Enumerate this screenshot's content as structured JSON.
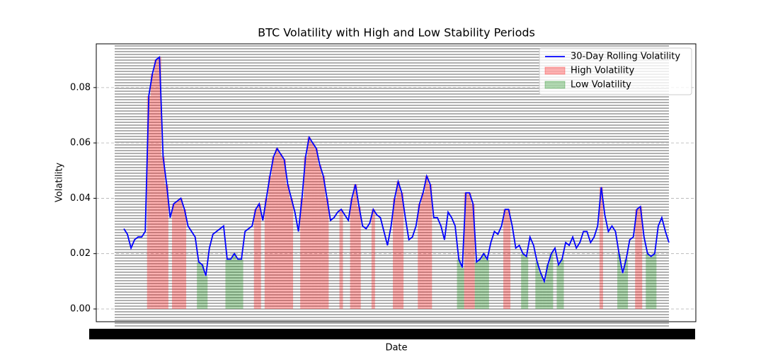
{
  "chart_data": {
    "type": "line",
    "title": "BTC Volatility with High and Low Stability Periods",
    "x_label": "Date",
    "y_label": "Volatility",
    "ylim": [
      -0.0046,
      0.0958
    ],
    "yticks": [
      {
        "value": 0,
        "label": "0.00"
      },
      {
        "value": 0.02,
        "label": "0.02"
      },
      {
        "value": 0.04,
        "label": "0.04"
      },
      {
        "value": 0.06,
        "label": "0.06"
      },
      {
        "value": 0.08,
        "label": "0.08"
      }
    ],
    "grid": true,
    "legend": "upper right",
    "series": [
      {
        "name": "30-Day Rolling Volatility",
        "color": "#0000ff",
        "values": [
          0.029,
          0.027,
          0.022,
          0.025,
          0.026,
          0.026,
          0.028,
          0.077,
          0.085,
          0.09,
          0.091,
          0.055,
          0.045,
          0.033,
          0.038,
          0.039,
          0.04,
          0.036,
          0.03,
          0.028,
          0.026,
          0.017,
          0.016,
          0.012,
          0.022,
          0.027,
          0.028,
          0.029,
          0.03,
          0.018,
          0.018,
          0.02,
          0.018,
          0.018,
          0.028,
          0.029,
          0.03,
          0.036,
          0.038,
          0.032,
          0.04,
          0.048,
          0.055,
          0.058,
          0.056,
          0.054,
          0.045,
          0.04,
          0.035,
          0.028,
          0.04,
          0.055,
          0.062,
          0.06,
          0.058,
          0.052,
          0.048,
          0.04,
          0.032,
          0.033,
          0.035,
          0.036,
          0.034,
          0.032,
          0.04,
          0.045,
          0.037,
          0.03,
          0.029,
          0.031,
          0.036,
          0.034,
          0.033,
          0.028,
          0.023,
          0.03,
          0.04,
          0.046,
          0.042,
          0.033,
          0.025,
          0.026,
          0.03,
          0.038,
          0.042,
          0.048,
          0.045,
          0.033,
          0.033,
          0.03,
          0.025,
          0.035,
          0.033,
          0.03,
          0.018,
          0.015,
          0.042,
          0.042,
          0.038,
          0.017,
          0.018,
          0.02,
          0.018,
          0.024,
          0.028,
          0.027,
          0.03,
          0.036,
          0.036,
          0.03,
          0.022,
          0.023,
          0.02,
          0.019,
          0.026,
          0.023,
          0.017,
          0.013,
          0.01,
          0.016,
          0.02,
          0.022,
          0.016,
          0.018,
          0.024,
          0.023,
          0.026,
          0.022,
          0.024,
          0.028,
          0.028,
          0.024,
          0.026,
          0.03,
          0.044,
          0.034,
          0.028,
          0.03,
          0.028,
          0.02,
          0.013,
          0.018,
          0.025,
          0.026,
          0.036,
          0.037,
          0.026,
          0.02,
          0.019,
          0.02,
          0.03,
          0.033,
          0.028,
          0.024
        ]
      },
      {
        "name": "High Volatility",
        "color": "#ff0000",
        "values": [
          null,
          null,
          null,
          null,
          null,
          null,
          null,
          0.077,
          0.085,
          0.09,
          0.091,
          0.055,
          0.045,
          null,
          0.038,
          0.039,
          0.04,
          0.036,
          null,
          null,
          null,
          null,
          null,
          null,
          null,
          null,
          null,
          null,
          null,
          null,
          null,
          null,
          null,
          null,
          null,
          null,
          null,
          0.036,
          0.038,
          null,
          0.04,
          0.048,
          0.055,
          0.058,
          0.056,
          0.054,
          0.045,
          0.04,
          null,
          null,
          0.04,
          0.055,
          0.062,
          0.06,
          0.058,
          0.052,
          0.048,
          0.04,
          null,
          null,
          null,
          0.036,
          null,
          null,
          0.04,
          0.045,
          0.037,
          null,
          null,
          null,
          0.036,
          null,
          null,
          null,
          null,
          null,
          0.04,
          0.046,
          0.042,
          null,
          null,
          null,
          null,
          0.038,
          0.042,
          0.048,
          0.045,
          null,
          null,
          null,
          null,
          null,
          null,
          null,
          null,
          null,
          0.042,
          0.042,
          0.038,
          null,
          null,
          null,
          null,
          null,
          null,
          null,
          null,
          0.036,
          0.036,
          null,
          null,
          null,
          null,
          null,
          null,
          null,
          null,
          null,
          null,
          null,
          null,
          null,
          null,
          null,
          null,
          null,
          null,
          null,
          null,
          null,
          null,
          null,
          null,
          null,
          0.044,
          null,
          null,
          null,
          null,
          null,
          null,
          null,
          null,
          null,
          0.036,
          0.037,
          null,
          null,
          null,
          null,
          null,
          null,
          null,
          null
        ]
      },
      {
        "name": "Low Volatility",
        "color": "#008000",
        "values": [
          null,
          null,
          null,
          null,
          null,
          null,
          null,
          null,
          null,
          null,
          null,
          null,
          null,
          null,
          null,
          null,
          null,
          null,
          null,
          null,
          null,
          0.017,
          0.016,
          0.012,
          null,
          null,
          null,
          null,
          null,
          0.018,
          0.018,
          0.02,
          0.018,
          0.018,
          null,
          null,
          null,
          null,
          null,
          null,
          null,
          null,
          null,
          null,
          null,
          null,
          null,
          null,
          null,
          null,
          null,
          null,
          null,
          null,
          null,
          null,
          null,
          null,
          null,
          null,
          null,
          null,
          null,
          null,
          null,
          null,
          null,
          null,
          null,
          null,
          null,
          null,
          null,
          null,
          null,
          null,
          null,
          null,
          null,
          null,
          null,
          null,
          null,
          null,
          null,
          null,
          null,
          null,
          null,
          null,
          null,
          null,
          null,
          null,
          0.018,
          0.015,
          null,
          null,
          null,
          0.017,
          0.018,
          0.02,
          0.018,
          null,
          null,
          null,
          null,
          null,
          null,
          null,
          null,
          null,
          0.02,
          0.019,
          null,
          null,
          0.017,
          0.013,
          0.01,
          0.016,
          0.02,
          null,
          0.016,
          0.018,
          null,
          null,
          null,
          null,
          null,
          null,
          null,
          null,
          null,
          null,
          null,
          null,
          null,
          null,
          null,
          0.02,
          0.013,
          0.018,
          null,
          null,
          null,
          null,
          null,
          0.02,
          0.019,
          0.02,
          null,
          null,
          null,
          null
        ]
      }
    ]
  }
}
